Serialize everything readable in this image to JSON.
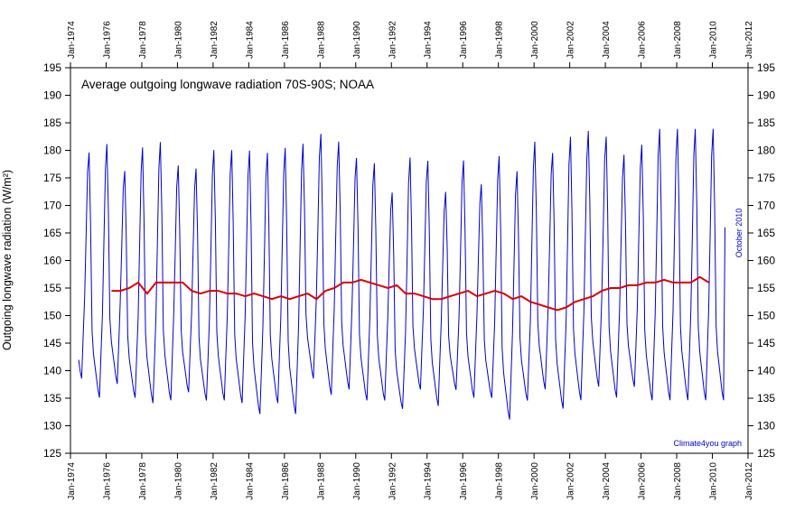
{
  "chart_data": {
    "type": "line",
    "title": "Average outgoing longwave radiation 70S-90S; NOAA",
    "ylabel": "Outgoing longwave radiation (W/m²)",
    "xlabel": "",
    "ylim": [
      125,
      195
    ],
    "yticks": [
      125,
      130,
      135,
      140,
      145,
      150,
      155,
      160,
      165,
      170,
      175,
      180,
      185,
      190,
      195
    ],
    "xlim": [
      1974.0,
      2012.0
    ],
    "xticks": [
      "Jan-1974",
      "Jan-1976",
      "Jan-1978",
      "Jan-1980",
      "Jan-1982",
      "Jan-1984",
      "Jan-1986",
      "Jan-1988",
      "Jan-1990",
      "Jan-1992",
      "Jan-1994",
      "Jan-1996",
      "Jan-1998",
      "Jan-2000",
      "Jan-2002",
      "Jan-2004",
      "Jan-2006",
      "Jan-2008",
      "Jan-2010",
      "Jan-2012"
    ],
    "annotation": "October 2010",
    "credit": "Climate4you graph",
    "grid": false,
    "series": [
      {
        "color": "#0000cc",
        "kind": "monthly",
        "start_year": 1974.46,
        "end_year": 2010.79,
        "summer_peaks": [
          183.0,
          181.5,
          183.0,
          178.0,
          182.5,
          183.5,
          179.0,
          178.5,
          182.0,
          182.0,
          182.0,
          181.5,
          182.5,
          183.0,
          185.0,
          183.5,
          180.5,
          179.5,
          174.0,
          180.5,
          180.0,
          174.0,
          180.0,
          175.5,
          181.0,
          178.0,
          183.5,
          181.5,
          184.5,
          185.5,
          184.5,
          181.0,
          183.0,
          186.0
        ],
        "winter_troughs": [
          138.0,
          134.5,
          137.0,
          134.5,
          133.5,
          134.0,
          135.5,
          134.0,
          134.0,
          133.5,
          131.5,
          133.5,
          131.5,
          138.0,
          135.0,
          136.0,
          134.0,
          134.0,
          132.5,
          136.0,
          133.0,
          136.0,
          134.5,
          134.5,
          130.5,
          134.0,
          136.0,
          132.5,
          134.0,
          136.5,
          134.5,
          136.5,
          134.0
        ],
        "last_value": 166.0
      },
      {
        "color": "#dd0000",
        "kind": "running-mean",
        "x": [
          1976.3,
          1976.8,
          1977.3,
          1977.8,
          1978.3,
          1978.8,
          1979.3,
          1979.8,
          1980.3,
          1980.8,
          1981.3,
          1981.8,
          1982.3,
          1982.8,
          1983.3,
          1983.8,
          1984.3,
          1984.8,
          1985.3,
          1985.8,
          1986.3,
          1986.8,
          1987.3,
          1987.8,
          1988.3,
          1988.8,
          1989.3,
          1989.8,
          1990.3,
          1990.8,
          1991.3,
          1991.8,
          1992.3,
          1992.8,
          1993.3,
          1993.8,
          1994.3,
          1994.8,
          1995.3,
          1995.8,
          1996.3,
          1996.8,
          1997.3,
          1997.8,
          1998.3,
          1998.8,
          1999.3,
          1999.8,
          2000.3,
          2000.8,
          2001.3,
          2001.8,
          2002.3,
          2002.8,
          2003.3,
          2003.8,
          2004.3,
          2004.8,
          2005.3,
          2005.8,
          2006.3,
          2006.8,
          2007.3,
          2007.8,
          2008.3,
          2008.8,
          2009.3,
          2009.8
        ],
        "y": [
          154.5,
          154.5,
          155.0,
          156.0,
          154.0,
          156.0,
          156.0,
          156.0,
          156.0,
          154.5,
          154.0,
          154.5,
          154.5,
          154.0,
          154.0,
          153.5,
          154.0,
          153.5,
          153.0,
          153.5,
          153.0,
          153.5,
          154.0,
          153.0,
          154.5,
          155.0,
          156.0,
          156.0,
          156.5,
          156.0,
          155.5,
          155.0,
          155.5,
          154.0,
          154.0,
          153.5,
          153.0,
          153.0,
          153.5,
          154.0,
          154.5,
          153.5,
          154.0,
          154.5,
          154.0,
          153.0,
          153.5,
          152.5,
          152.0,
          151.5,
          151.0,
          151.5,
          152.5,
          153.0,
          153.5,
          154.5,
          155.0,
          155.0,
          155.5,
          155.5,
          156.0,
          156.0,
          156.5,
          156.0,
          156.0,
          156.0,
          157.0,
          156.0
        ]
      }
    ]
  }
}
